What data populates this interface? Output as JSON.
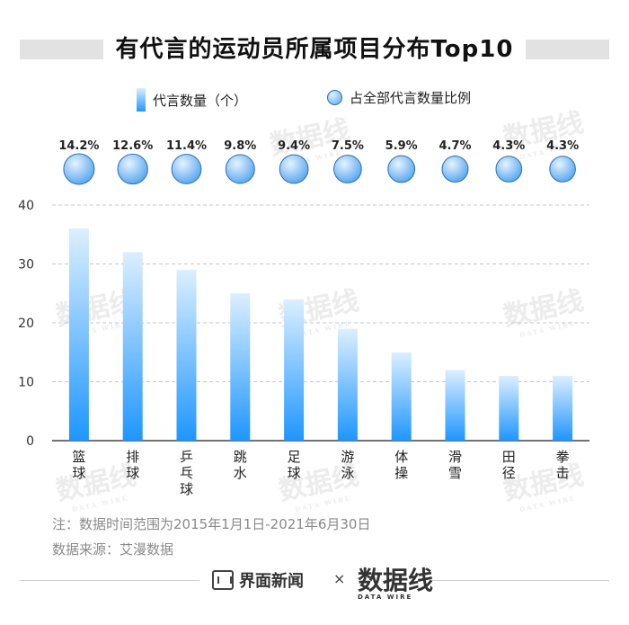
{
  "title": "有代言的运动员所属项目分布Top10",
  "legend": {
    "count_label": "代言数量（个）",
    "share_label": "占全部代言数量比例"
  },
  "chart_data": {
    "type": "bar",
    "categories": [
      "篮球",
      "排球",
      "乒乓球",
      "跳水",
      "足球",
      "游泳",
      "体操",
      "滑雪",
      "田径",
      "拳击"
    ],
    "series": [
      {
        "name": "代言数量（个）",
        "values": [
          36,
          32,
          29,
          25,
          24,
          19,
          15,
          12,
          11,
          11
        ]
      },
      {
        "name": "占全部代言数量比例",
        "values": [
          14.2,
          12.6,
          11.4,
          9.8,
          9.4,
          7.5,
          5.9,
          4.7,
          4.3,
          4.3
        ],
        "labels": [
          "14.2%",
          "12.6%",
          "11.4%",
          "9.8%",
          "9.4%",
          "7.5%",
          "5.9%",
          "4.7%",
          "4.3%",
          "4.3%"
        ]
      }
    ],
    "ylim": [
      0,
      40
    ],
    "yticks": [
      "0",
      "10",
      "20",
      "30",
      "40"
    ],
    "grid": true,
    "legend_position": "top",
    "colors": {
      "bar_top": "#dcefff",
      "bar_bottom": "#1e96ff",
      "bubble": "#6cb3f2",
      "bubble_stroke": "#2a6fb5"
    }
  },
  "notes": {
    "note1": "注：数据时间范围为2015年1月1日-2021年6月30日",
    "note2": "数据来源：艾漫数据"
  },
  "footer": {
    "brand": "界面新闻",
    "times": "×",
    "datawire_cn": "数据线",
    "datawire_en": "DATA WIRE"
  },
  "watermark": {
    "cn": "数据线",
    "en": "DATA WIRE"
  }
}
